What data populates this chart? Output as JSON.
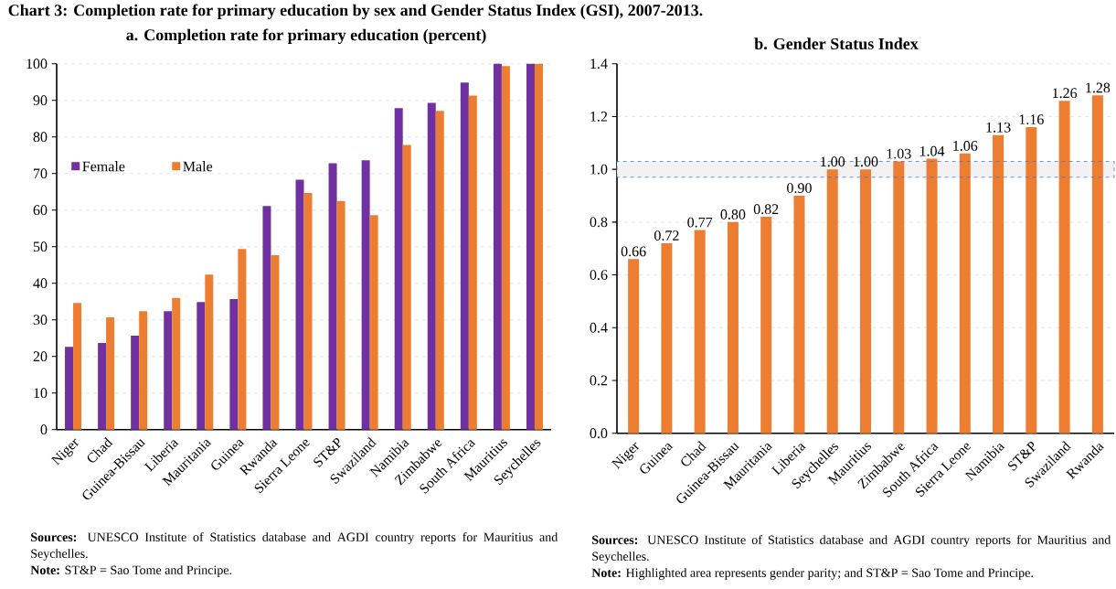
{
  "chart_data": [
    {
      "type": "bar",
      "title": "a. Completion rate for primary education (percent)",
      "categories": [
        "Niger",
        "Chad",
        "Guinea-Bissau",
        "Liberia",
        "Mauritania",
        "Guinea",
        "Rwanda",
        "Sierra Leone",
        "ST&P",
        "Swaziland",
        "Namibia",
        "Zimbabwe",
        "South Africa",
        "Mauritius",
        "Seychelles"
      ],
      "series": [
        {
          "name": "Female",
          "color": "#7030a0",
          "values": [
            22.6,
            23.7,
            25.7,
            32.4,
            34.9,
            35.7,
            61.1,
            68.3,
            72.8,
            73.6,
            87.9,
            89.3,
            94.9,
            100,
            100
          ]
        },
        {
          "name": "Male",
          "color": "#ed7d31",
          "values": [
            34.6,
            30.7,
            32.4,
            36.0,
            42.4,
            49.4,
            47.7,
            64.7,
            62.5,
            58.6,
            77.8,
            87.1,
            91.3,
            99.4,
            100
          ]
        }
      ],
      "ylim": [
        0,
        100
      ],
      "yticks": [
        0,
        10,
        20,
        30,
        40,
        50,
        60,
        70,
        80,
        90,
        100
      ],
      "grid": "y",
      "legend": "left",
      "annotations": [
        "Chart 3: Completion rate for primary education by sex and Gender Status Index (GSI), 2007-2013.",
        "**Sources:** UNESCO Institute of Statistics database and AGDI country reports for Mauritius and Seychelles.",
        "**Note:** ST&P = Sao Tome and Principe."
      ]
    },
    {
      "type": "bar",
      "title": "b. Gender Status Index",
      "categories": [
        "Niger",
        "Guinea",
        "Chad",
        "Guinea-Bissau",
        "Mauritania",
        "Liberia",
        "Seychelles",
        "Mauritius",
        "Zimbabwe",
        "South Africa",
        "Sierra Leone",
        "Namibia",
        "ST&P",
        "Swaziland",
        "Rwanda"
      ],
      "values": [
        0.66,
        0.72,
        0.77,
        0.8,
        0.82,
        0.9,
        1.0,
        1.0,
        1.03,
        1.04,
        1.06,
        1.13,
        1.16,
        1.26,
        1.28
      ],
      "value_labels": [
        "0.66",
        "0.72",
        "0.77",
        "0.80",
        "0.82",
        "0.90",
        "1.00",
        "1.00",
        "1.03",
        "1.04",
        "1.06",
        "1.13",
        "1.16",
        "1.26",
        "1.28"
      ],
      "color": "#ed7d31",
      "ylim": [
        0,
        1.4
      ],
      "yticks": [
        {
          "value": 0,
          "label": "0.0"
        },
        0.2,
        0.4,
        0.6,
        0.8,
        {
          "value": 1,
          "label": "1.0"
        },
        1.2,
        1.4
      ],
      "grid": "y",
      "bands": [
        {
          "axis": "y",
          "from": 0.97,
          "to": 1.03,
          "color": "#f2f2f2"
        }
      ],
      "annotations": [
        "**Sources:** UNESCO Institute of Statistics database and AGDI country reports for Mauritius and Seychelles.",
        "**Note:** Highlighted area represents gender parity; and ST&P = Sao Tome and Principe."
      ]
    }
  ]
}
